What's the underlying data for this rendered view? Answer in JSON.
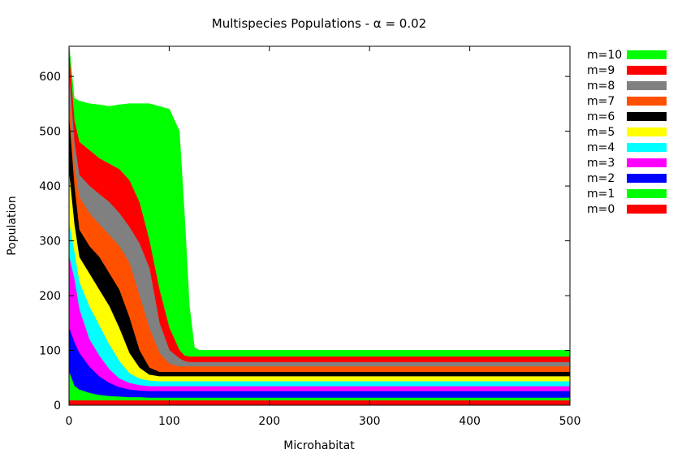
{
  "chart_data": {
    "type": "area",
    "title": "Multispecies Populations - α = 0.02",
    "xlabel": "Microhabitat",
    "ylabel": "Population",
    "xlim": [
      0,
      500
    ],
    "ylim": [
      0,
      655
    ],
    "x_ticks": [
      0,
      100,
      200,
      300,
      400,
      500
    ],
    "y_ticks": [
      0,
      100,
      200,
      300,
      400,
      500,
      600
    ],
    "grid": false,
    "legend_position": "right-outside",
    "x": [
      0,
      5,
      10,
      20,
      30,
      40,
      50,
      60,
      70,
      80,
      90,
      100,
      110,
      115,
      120,
      125,
      130,
      140,
      150,
      200,
      300,
      400,
      500
    ],
    "series": [
      {
        "name": "m=0",
        "color": "#ff0000",
        "values": [
          8,
          8,
          8,
          8,
          8,
          8,
          8,
          8,
          8,
          8,
          8,
          8,
          8,
          8,
          8,
          8,
          8,
          8,
          8,
          8,
          8,
          8,
          8
        ]
      },
      {
        "name": "m=1",
        "color": "#00ff00",
        "values": [
          60,
          35,
          28,
          22,
          18,
          16,
          15,
          14,
          14,
          13,
          13,
          13,
          13,
          13,
          13,
          13,
          13,
          13,
          13,
          13,
          13,
          13,
          13
        ]
      },
      {
        "name": "m=2",
        "color": "#0000ff",
        "values": [
          140,
          115,
          95,
          70,
          52,
          40,
          32,
          28,
          26,
          25,
          25,
          25,
          25,
          25,
          25,
          25,
          25,
          25,
          25,
          25,
          25,
          25,
          25
        ]
      },
      {
        "name": "m=3",
        "color": "#ff00ff",
        "values": [
          270,
          230,
          175,
          120,
          90,
          65,
          48,
          40,
          36,
          34,
          34,
          34,
          34,
          34,
          34,
          34,
          34,
          34,
          34,
          34,
          34,
          34,
          34
        ]
      },
      {
        "name": "m=4",
        "color": "#00ffff",
        "values": [
          330,
          280,
          225,
          180,
          145,
          110,
          80,
          58,
          48,
          44,
          43,
          43,
          43,
          43,
          43,
          43,
          43,
          43,
          43,
          43,
          43,
          43,
          43
        ]
      },
      {
        "name": "m=5",
        "color": "#ffff00",
        "values": [
          420,
          330,
          270,
          240,
          210,
          180,
          140,
          95,
          68,
          55,
          52,
          52,
          52,
          52,
          52,
          52,
          52,
          52,
          52,
          52,
          52,
          52,
          52
        ]
      },
      {
        "name": "m=6",
        "color": "#000000",
        "values": [
          520,
          400,
          320,
          290,
          270,
          240,
          210,
          160,
          100,
          68,
          60,
          60,
          60,
          60,
          60,
          60,
          60,
          60,
          60,
          60,
          60,
          60,
          60
        ]
      },
      {
        "name": "m=7",
        "color": "#ff5000",
        "values": [
          560,
          440,
          380,
          350,
          330,
          310,
          290,
          260,
          200,
          140,
          95,
          75,
          70,
          70,
          70,
          70,
          70,
          70,
          70,
          70,
          70,
          70,
          70
        ]
      },
      {
        "name": "m=8",
        "color": "#808080",
        "values": [
          600,
          480,
          420,
          400,
          385,
          370,
          350,
          325,
          295,
          250,
          150,
          100,
          85,
          80,
          78,
          78,
          78,
          78,
          78,
          78,
          78,
          78,
          78
        ]
      },
      {
        "name": "m=9",
        "color": "#ff0000",
        "values": [
          640,
          520,
          480,
          465,
          450,
          440,
          430,
          410,
          370,
          300,
          210,
          140,
          100,
          90,
          88,
          88,
          88,
          88,
          88,
          88,
          88,
          88,
          88
        ]
      },
      {
        "name": "m=10",
        "color": "#00ff00",
        "values": [
          655,
          560,
          555,
          550,
          548,
          545,
          548,
          550,
          550,
          550,
          545,
          540,
          500,
          350,
          180,
          105,
          100,
          100,
          100,
          100,
          100,
          100,
          100
        ]
      }
    ]
  }
}
